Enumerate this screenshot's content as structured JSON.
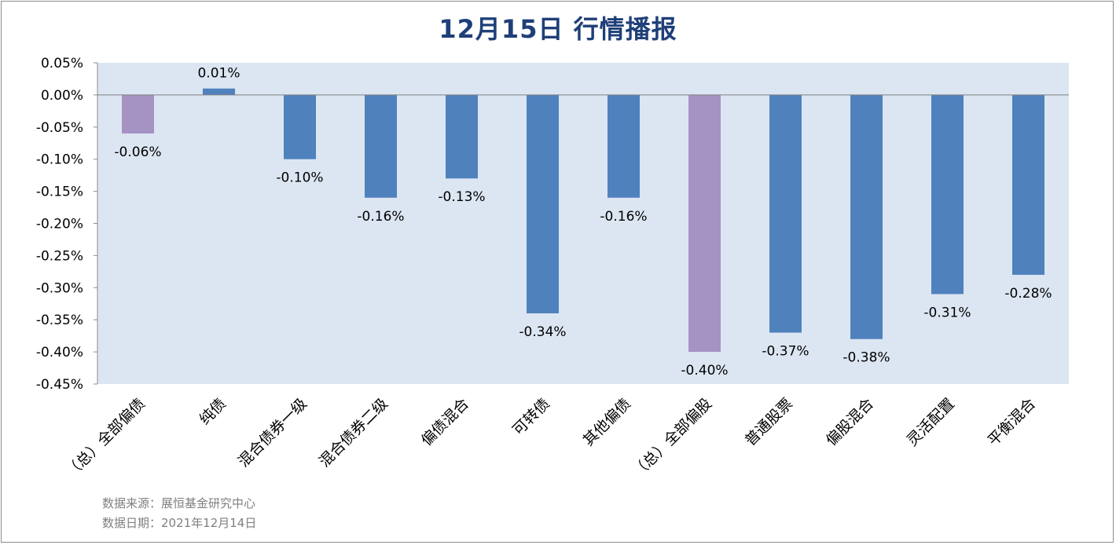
{
  "title": "12月15日  行情播报",
  "footer": {
    "source": "数据来源：展恒基金研究中心",
    "date": "数据日期：2021年12月14日"
  },
  "colors": {
    "plot_background": "#dce6f2",
    "bar": "#4f81bd",
    "bar_highlight": "#a593c4",
    "title": "#1f3f78"
  },
  "chart_data": {
    "type": "bar",
    "title": "12月15日  行情播报",
    "categories": [
      "（总）全部偏债",
      "纯债",
      "混合债券一级",
      "混合债券二级",
      "偏债混合",
      "可转债",
      "其他偏债",
      "（总）全部偏股",
      "普通股票",
      "偏股混合",
      "灵活配置",
      "平衡混合"
    ],
    "values": [
      -0.06,
      0.01,
      -0.1,
      -0.16,
      -0.13,
      -0.34,
      -0.16,
      -0.4,
      -0.37,
      -0.38,
      -0.31,
      -0.28
    ],
    "value_labels": [
      "-0.06%",
      "0.01%",
      "-0.10%",
      "-0.16%",
      "-0.13%",
      "-0.34%",
      "-0.16%",
      "-0.40%",
      "-0.37%",
      "-0.38%",
      "-0.31%",
      "-0.28%"
    ],
    "highlight": [
      true,
      false,
      false,
      false,
      false,
      false,
      false,
      true,
      false,
      false,
      false,
      false
    ],
    "unit": "%",
    "ylim": [
      -0.45,
      0.05
    ],
    "yticks": [
      0.05,
      0.0,
      -0.05,
      -0.1,
      -0.15,
      -0.2,
      -0.25,
      -0.3,
      -0.35,
      -0.4,
      -0.45
    ],
    "ytick_labels": [
      "0.05%",
      "0.00%",
      "-0.05%",
      "-0.10%",
      "-0.15%",
      "-0.20%",
      "-0.25%",
      "-0.30%",
      "-0.35%",
      "-0.40%",
      "-0.45%"
    ],
    "grid": false,
    "legend": "none"
  }
}
